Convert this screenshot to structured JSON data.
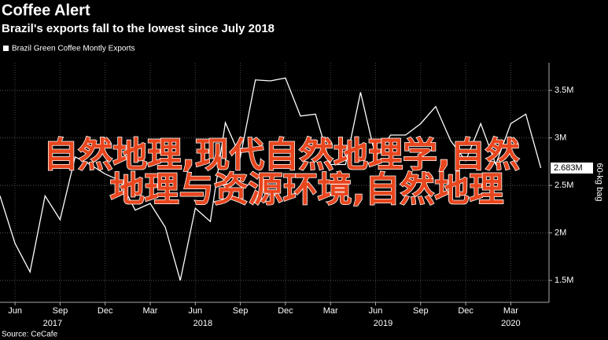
{
  "chart_data": {
    "type": "line",
    "title": "Coffee Alert",
    "subtitle": "Brazil's exports fall to the lowest since July 2018",
    "y_axis_label": "60-kg bag",
    "source": "Source: CeCafe",
    "overlay_text": [
      "自然地理,现代自然地理学,自然",
      "地理与资源环境,自然地理"
    ],
    "categories": [
      null,
      "Jun",
      null,
      null,
      "Sep",
      null,
      null,
      "Dec",
      null,
      null,
      "Mar",
      null,
      null,
      "Jun",
      null,
      null,
      "Sep",
      null,
      null,
      "Dec",
      null,
      null,
      "Mar",
      null,
      null,
      "Jun",
      null,
      null,
      "Sep",
      null,
      null,
      "Dec",
      null,
      null,
      "Mar",
      null,
      null
    ],
    "x_years": [
      {
        "label": "2017",
        "from": 0,
        "to": 7
      },
      {
        "label": "2018",
        "from": 8,
        "to": 19
      },
      {
        "label": "2019",
        "from": 20,
        "to": 31
      },
      {
        "label": "2020",
        "from": 32,
        "to": 36
      }
    ],
    "series": [
      {
        "name": "Brazil Green Coffee Montly Exports",
        "color": "#ffffff",
        "values": [
          2.39,
          1.89,
          1.59,
          2.39,
          2.14,
          2.8,
          2.72,
          2.62,
          2.55,
          2.24,
          2.31,
          2.06,
          1.5,
          2.26,
          2.12,
          3.16,
          2.8,
          3.61,
          3.6,
          3.63,
          3.23,
          3.25,
          2.72,
          2.72,
          3.48,
          2.8,
          3.03,
          3.03,
          3.15,
          3.33,
          2.97,
          2.76,
          3.15,
          2.72,
          3.15,
          3.25,
          2.683
        ],
        "value_labels": [
          null,
          null,
          null,
          null,
          null,
          null,
          null,
          null,
          null,
          null,
          null,
          null,
          null,
          null,
          null,
          null,
          null,
          null,
          null,
          null,
          null,
          null,
          null,
          null,
          null,
          null,
          null,
          null,
          null,
          null,
          null,
          null,
          null,
          null,
          null,
          null,
          "2.683M"
        ]
      }
    ],
    "ylim": [
      1.27,
      3.79
    ],
    "yticks": [
      {
        "value": 1.5,
        "label": "1.5M"
      },
      {
        "value": 2,
        "label": "2M"
      },
      {
        "value": 2.5,
        "label": "2.5M"
      },
      {
        "value": 3,
        "label": "3M"
      },
      {
        "value": 3.5,
        "label": "3.5M"
      }
    ],
    "grid": true
  }
}
